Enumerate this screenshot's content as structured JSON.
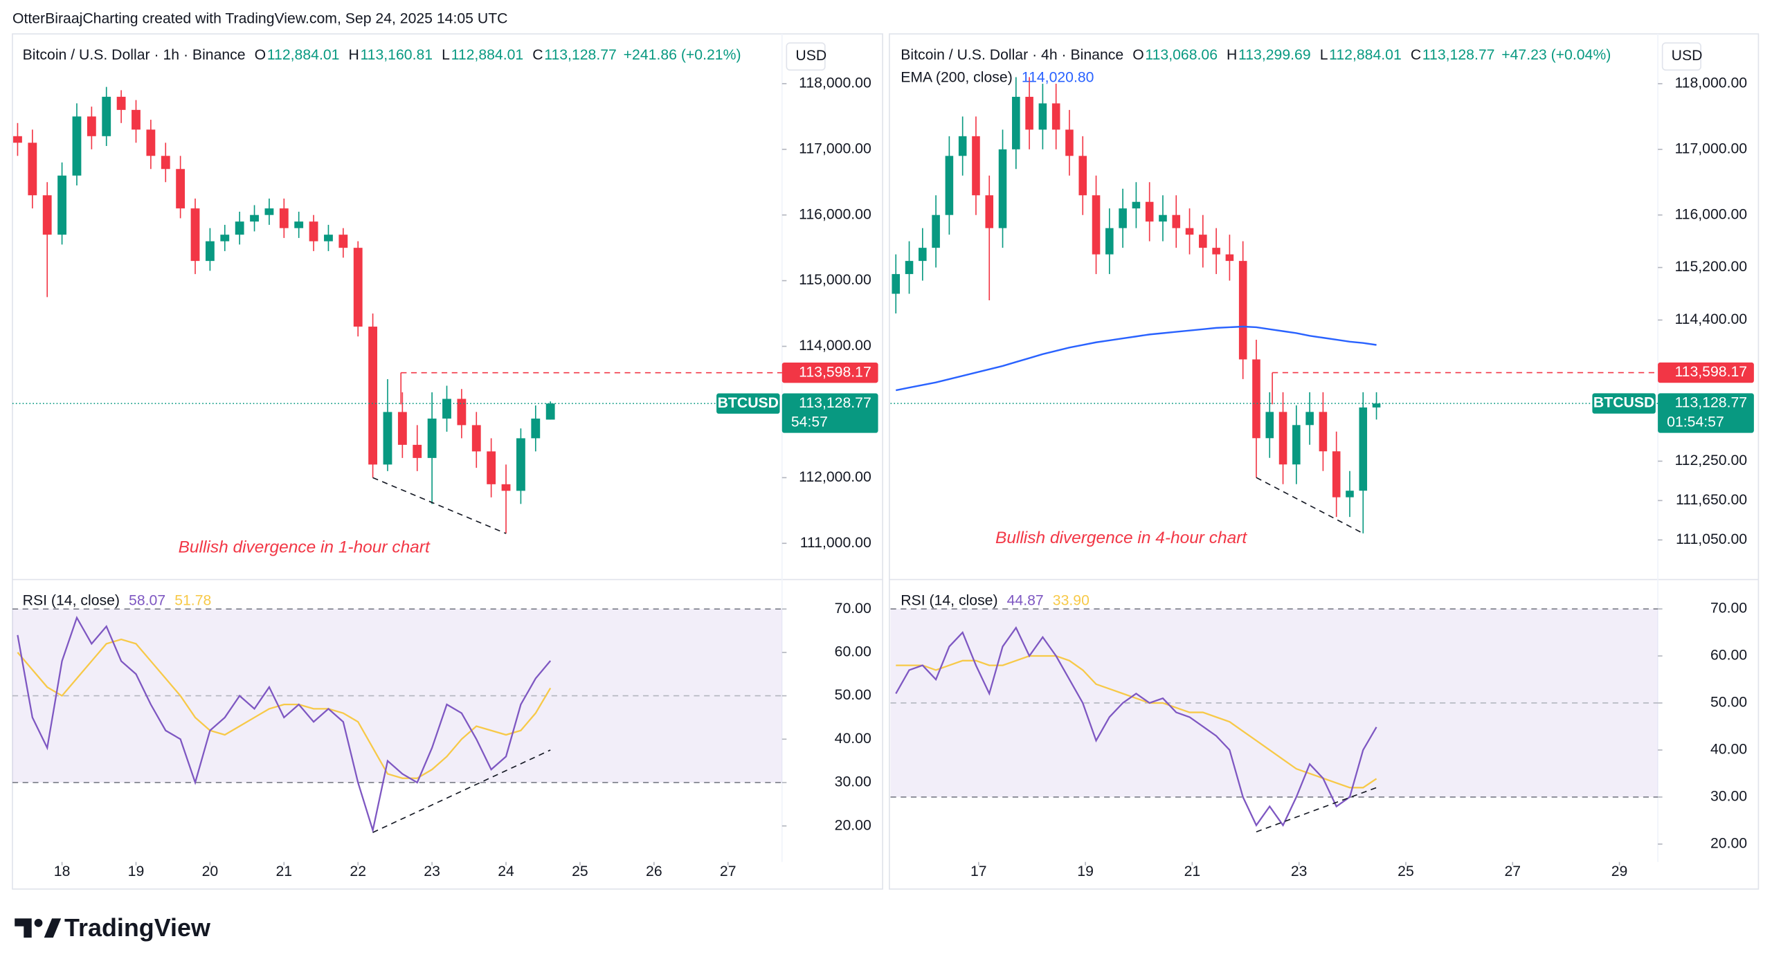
{
  "header": {
    "credit": "OtterBiraajCharting created with TradingView.com, Sep 24, 2025 14:05 UTC"
  },
  "footer": {
    "brand": "TradingView"
  },
  "chart_data": [
    {
      "type": "candlestick",
      "title": "Bitcoin / U.S. Dollar · 1h · Binance",
      "ohlc": [
        {
          "key": "O",
          "value": "112,884.01"
        },
        {
          "key": "H",
          "value": "113,160.81"
        },
        {
          "key": "L",
          "value": "112,884.01"
        },
        {
          "key": "C",
          "value": "113,128.77"
        }
      ],
      "change": "+241.86 (+0.21%)",
      "currency": "USD",
      "colors": {
        "up": "#089981",
        "down": "#f23645"
      },
      "xlim": [
        17.33,
        27.73
      ],
      "xticks": [
        18,
        19,
        20,
        21,
        22,
        23,
        24,
        25,
        26,
        27
      ],
      "ylim": [
        110449,
        118637
      ],
      "yticks": [
        {
          "value": 118000,
          "label": "118,000.00"
        },
        {
          "value": 117000,
          "label": "117,000.00"
        },
        {
          "value": 116000,
          "label": "116,000.00"
        },
        {
          "value": 115000,
          "label": "115,000.00"
        },
        {
          "value": 114000,
          "label": "114,000.00"
        },
        {
          "value": 112000,
          "label": "112,000.00"
        },
        {
          "value": 111000,
          "label": "111,000.00"
        }
      ],
      "x": [
        17.4,
        17.6,
        17.8,
        18,
        18.2,
        18.4,
        18.6,
        18.8,
        19,
        19.2,
        19.4,
        19.6,
        19.8,
        20,
        20.2,
        20.4,
        20.6,
        20.8,
        21,
        21.2,
        21.4,
        21.6,
        21.8,
        22,
        22.2,
        22.4,
        22.6,
        22.8,
        23,
        23.2,
        23.4,
        23.6,
        23.8,
        24,
        24.2,
        24.4,
        24.6
      ],
      "open": [
        117200,
        117100,
        116300,
        115700,
        116600,
        117500,
        117200,
        117800,
        117600,
        117300,
        116900,
        116700,
        116100,
        115300,
        115600,
        115700,
        115900,
        116000,
        116100,
        115800,
        115900,
        115600,
        115700,
        115500,
        114300,
        112200,
        113000,
        112500,
        112300,
        112900,
        113200,
        112800,
        112400,
        111900,
        111800,
        112600,
        112884.01
      ],
      "high": [
        117400,
        117300,
        116500,
        116800,
        117700,
        117650,
        117950,
        117900,
        117750,
        117450,
        117100,
        116900,
        116250,
        115800,
        115850,
        116050,
        116150,
        116250,
        116250,
        116050,
        116000,
        115850,
        115800,
        115600,
        114500,
        113500,
        113300,
        112800,
        113300,
        113400,
        113350,
        113000,
        112600,
        112200,
        112750,
        113100,
        113160.81
      ],
      "low": [
        116900,
        116100,
        114750,
        115550,
        116450,
        117000,
        117050,
        117400,
        117100,
        116700,
        116500,
        115950,
        115100,
        115150,
        115450,
        115550,
        115750,
        115850,
        115650,
        115650,
        115450,
        115450,
        115350,
        114150,
        112000,
        112100,
        112300,
        112100,
        111600,
        112700,
        112600,
        112150,
        111700,
        111150,
        111600,
        112400,
        112884.01
      ],
      "close": [
        117100,
        116300,
        115700,
        116600,
        117500,
        117200,
        117800,
        117600,
        117300,
        116900,
        116700,
        116100,
        115300,
        115600,
        115700,
        115900,
        116000,
        116100,
        115800,
        115900,
        115600,
        115700,
        115500,
        114300,
        112200,
        113000,
        112500,
        112300,
        112900,
        113200,
        112800,
        112400,
        111900,
        111800,
        112600,
        112900,
        113128.77
      ],
      "resistance": {
        "x": 22.58,
        "value": 113598.17,
        "label": "113,598.17"
      },
      "last_price": {
        "value": 113128.77,
        "label": "113,128.77",
        "symbol": "BTCUSD",
        "countdown": "54:57"
      },
      "trendline": {
        "x": [
          22.2,
          24.0
        ],
        "y": [
          112000,
          111150
        ]
      },
      "annotation": "Bullish divergence in 1-hour chart",
      "rsi": {
        "title": "RSI (14, close)",
        "ylim": [
          11.7,
          76.8
        ],
        "yticks": [
          {
            "value": 70,
            "label": "70.00"
          },
          {
            "value": 60,
            "label": "60.00"
          },
          {
            "value": 50,
            "label": "50.00"
          },
          {
            "value": 40,
            "label": "40.00"
          },
          {
            "value": 30,
            "label": "30.00"
          },
          {
            "value": 20,
            "label": "20.00"
          }
        ],
        "band": [
          30,
          70
        ],
        "midline": 50,
        "series": [
          {
            "color": "#7e57c2",
            "legend_label": "58.07",
            "values": [
              64,
              45,
              38,
              58,
              68,
              62,
              66,
              58,
              55,
              48,
              42,
              40,
              30,
              42,
              45,
              50,
              47,
              52,
              45,
              48,
              44,
              47,
              44,
              30,
              19,
              35,
              32,
              30,
              38,
              48,
              46,
              40,
              33,
              36,
              48,
              54,
              58.07
            ]
          },
          {
            "color": "#f7c948",
            "legend_label": "51.78",
            "values": [
              60,
              56,
              52,
              50,
              54,
              58,
              62,
              63,
              62,
              58,
              54,
              50,
              45,
              42,
              41,
              43,
              45,
              47,
              48,
              48,
              47,
              47,
              46,
              44,
              38,
              32,
              31,
              31,
              33,
              36,
              40,
              43,
              42,
              41,
              42,
              46,
              51.78
            ]
          }
        ],
        "trendline": {
          "x": [
            22.2,
            24.6
          ],
          "y": [
            18.5,
            37.5
          ]
        }
      }
    },
    {
      "type": "candlestick",
      "title": "Bitcoin / U.S. Dollar · 4h · Binance",
      "ohlc": [
        {
          "key": "O",
          "value": "113,068.06"
        },
        {
          "key": "H",
          "value": "113,299.69"
        },
        {
          "key": "L",
          "value": "112,884.01"
        },
        {
          "key": "C",
          "value": "113,128.77"
        }
      ],
      "change": "+47.23 (+0.04%)",
      "currency": "USD",
      "colors": {
        "up": "#089981",
        "down": "#f23645"
      },
      "xlim": [
        15.35,
        29.72
      ],
      "xticks": [
        17,
        19,
        21,
        23,
        25,
        27,
        29
      ],
      "ylim": [
        110447,
        118638
      ],
      "yticks": [
        {
          "value": 118000,
          "label": "118,000.00"
        },
        {
          "value": 117000,
          "label": "117,000.00"
        },
        {
          "value": 116000,
          "label": "116,000.00"
        },
        {
          "value": 115200,
          "label": "115,200.00"
        },
        {
          "value": 114400,
          "label": "114,400.00"
        },
        {
          "value": 112250,
          "label": "112,250.00"
        },
        {
          "value": 111650,
          "label": "111,650.00"
        },
        {
          "value": 111050,
          "label": "111,050.00"
        }
      ],
      "x": [
        15.45,
        15.7,
        15.95,
        16.2,
        16.45,
        16.7,
        16.95,
        17.2,
        17.45,
        17.7,
        17.95,
        18.2,
        18.45,
        18.7,
        18.95,
        19.2,
        19.45,
        19.7,
        19.95,
        20.2,
        20.45,
        20.7,
        20.95,
        21.2,
        21.45,
        21.7,
        21.95,
        22.2,
        22.45,
        22.7,
        22.95,
        23.2,
        23.45,
        23.7,
        23.95,
        24.2,
        24.45
      ],
      "open": [
        114800,
        115100,
        115300,
        115500,
        116000,
        116900,
        117200,
        116300,
        115800,
        117000,
        117800,
        117300,
        117700,
        117300,
        116900,
        116300,
        115400,
        115800,
        116100,
        116200,
        115900,
        116000,
        115800,
        115700,
        115500,
        115400,
        115300,
        113800,
        112600,
        113000,
        112200,
        112800,
        113000,
        112400,
        111700,
        111800,
        113068.06
      ],
      "high": [
        115400,
        115600,
        115800,
        116300,
        117200,
        117500,
        117500,
        116600,
        117300,
        118100,
        118100,
        118000,
        118000,
        117600,
        117200,
        116600,
        116100,
        116400,
        116500,
        116500,
        116300,
        116300,
        116100,
        116000,
        115800,
        115700,
        115600,
        114100,
        113300,
        113300,
        113100,
        113300,
        113300,
        112700,
        112100,
        113300,
        113299.69
      ],
      "low": [
        114500,
        114800,
        115000,
        115200,
        115700,
        116600,
        116000,
        114700,
        115500,
        116700,
        117000,
        117000,
        117000,
        116600,
        116000,
        115100,
        115100,
        115500,
        115800,
        115600,
        115600,
        115500,
        115400,
        115200,
        115100,
        115000,
        113500,
        112000,
        112300,
        111900,
        111900,
        112500,
        112100,
        111400,
        111400,
        111150,
        112884.01
      ],
      "close": [
        115100,
        115300,
        115500,
        116000,
        116900,
        117200,
        116300,
        115800,
        117000,
        117800,
        117300,
        117700,
        117300,
        116900,
        116300,
        115400,
        115800,
        116100,
        116200,
        115900,
        116000,
        115800,
        115700,
        115500,
        115400,
        115300,
        113800,
        112600,
        113000,
        112200,
        112800,
        113000,
        112400,
        111700,
        111800,
        113068.06,
        113128.77
      ],
      "ema": {
        "title": "EMA (200, close)",
        "legend_label": "114,020.80",
        "color": "#2962ff",
        "values": [
          113330,
          113370,
          113410,
          113450,
          113500,
          113550,
          113600,
          113650,
          113700,
          113760,
          113820,
          113880,
          113930,
          113980,
          114020,
          114060,
          114090,
          114120,
          114150,
          114180,
          114200,
          114220,
          114240,
          114260,
          114280,
          114290,
          114300,
          114290,
          114260,
          114230,
          114200,
          114160,
          114130,
          114100,
          114070,
          114050,
          114020.8
        ]
      },
      "resistance": {
        "x": 22.5,
        "value": 113598.17,
        "label": "113,598.17"
      },
      "last_price": {
        "value": 113128.77,
        "label": "113,128.77",
        "symbol": "BTCUSD",
        "countdown": "01:54:57"
      },
      "trendline": {
        "x": [
          22.2,
          24.2
        ],
        "y": [
          112000,
          111150
        ]
      },
      "annotation": "Bullish divergence in 4-hour chart",
      "rsi": {
        "title": "RSI (14, close)",
        "ylim": [
          16.2,
          76.25
        ],
        "yticks": [
          {
            "value": 70,
            "label": "70.00"
          },
          {
            "value": 60,
            "label": "60.00"
          },
          {
            "value": 50,
            "label": "50.00"
          },
          {
            "value": 40,
            "label": "40.00"
          },
          {
            "value": 30,
            "label": "30.00"
          },
          {
            "value": 20,
            "label": "20.00"
          }
        ],
        "band": [
          30,
          70
        ],
        "midline": 50,
        "series": [
          {
            "color": "#7e57c2",
            "legend_label": "44.87",
            "values": [
              52,
              57,
              58,
              55,
              62,
              65,
              58,
              52,
              62,
              66,
              60,
              64,
              60,
              55,
              50,
              42,
              47,
              50,
              52,
              50,
              51,
              48,
              47,
              45,
              43,
              40,
              30,
              24,
              28,
              24,
              30,
              37,
              34,
              28,
              30,
              40,
              44.87
            ]
          },
          {
            "color": "#f7c948",
            "legend_label": "33.90",
            "values": [
              58,
              58,
              58,
              57,
              58,
              59,
              59,
              58,
              58,
              59,
              60,
              60,
              60,
              59,
              57,
              54,
              53,
              52,
              51,
              50,
              50,
              49,
              48,
              48,
              47,
              46,
              44,
              42,
              40,
              38,
              36,
              35,
              34,
              33,
              32,
              32,
              33.9
            ]
          }
        ],
        "trendline": {
          "x": [
            22.2,
            24.45
          ],
          "y": [
            22.6,
            32
          ]
        }
      }
    }
  ]
}
